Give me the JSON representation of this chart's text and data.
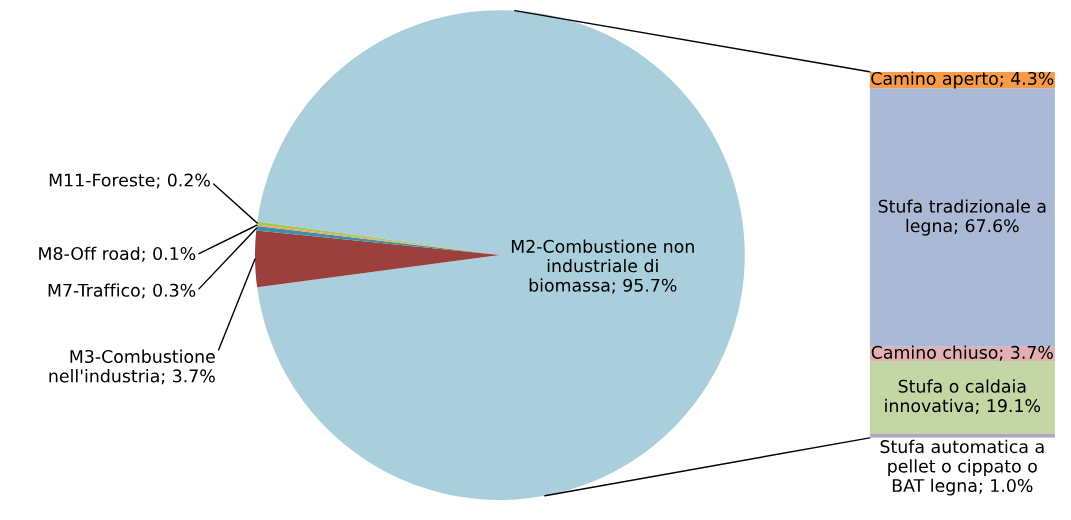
{
  "chart_data": [
    {
      "type": "pie",
      "categories": [
        "M2-Combustione non industriale di biomassa",
        "M3-Combustione nell'industria",
        "M7-Traffico",
        "M8-Off road",
        "M11-Foreste"
      ],
      "values": [
        95.7,
        3.7,
        0.3,
        0.1,
        0.2
      ],
      "colors": [
        "#a9cfdc",
        "#9b403d",
        "#3f8fa8",
        "#e8a35a",
        "#a8c45c"
      ],
      "value_labels": [
        "95.7%",
        "3.7%",
        "0.3%",
        "0.1%",
        "0.2%"
      ],
      "legend": false
    },
    {
      "type": "bar",
      "stacked": true,
      "categories": [
        null
      ],
      "tick_labels": false,
      "legend": false,
      "series": [
        {
          "color": "#b3a2c7",
          "values": [
            1.0
          ],
          "value_labels": [
            "Stufa automatica a pellet o cippato o BAT legna; 1.0%"
          ]
        },
        {
          "color": "#c4d6a4",
          "values": [
            19.1
          ],
          "value_labels": [
            "Stufa o caldaia innovativa; 19.1%"
          ]
        },
        {
          "color": "#e2b0b0",
          "values": [
            3.7
          ],
          "value_labels": [
            "Camino chiuso; 3.7%"
          ]
        },
        {
          "color": "#a9b9d6",
          "values": [
            67.6
          ],
          "value_labels": [
            "Stufa tradizionale a legna; 67.6%"
          ]
        },
        {
          "color": "#f79a4a",
          "values": [
            4.3
          ],
          "value_labels": [
            "Camino aperto; 4.3%"
          ]
        }
      ]
    }
  ]
}
